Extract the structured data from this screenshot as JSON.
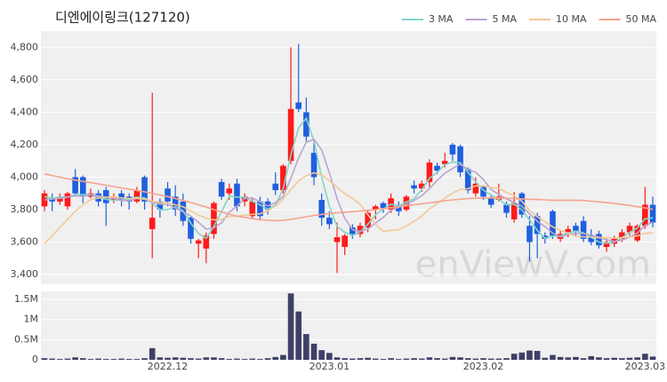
{
  "chart_data": [
    {
      "type": "candlestick",
      "title": "디엔에이링크(127120)",
      "watermark": "enViewV.com",
      "up_color": "#ff1a1a",
      "down_color": "#1f5fe0",
      "legend": "top-right",
      "grid": true,
      "open": [
        3820,
        3870,
        3850,
        3820,
        4000,
        4000,
        3880,
        3900,
        3920,
        3860,
        3900,
        3880,
        3850,
        4000,
        3680,
        3850,
        3930,
        3880,
        3850,
        3750,
        3590,
        3560,
        3650,
        3970,
        3900,
        3960,
        3850,
        3760,
        3850,
        3850,
        3960,
        3920,
        4100,
        4460,
        4400,
        4150,
        3860,
        3750,
        3600,
        3570,
        3690,
        3650,
        3690,
        3800,
        3840,
        3800,
        3830,
        3800,
        3950,
        3930,
        3970,
        4070,
        4080,
        4200,
        4190,
        4050,
        3900,
        3940,
        3870,
        3860,
        3830,
        3740,
        3900,
        3700,
        3760,
        3640,
        3790,
        3620,
        3650,
        3700,
        3730,
        3640,
        3650,
        3570,
        3590,
        3620,
        3660,
        3610,
        3700,
        3830
      ],
      "high": [
        3920,
        3900,
        3900,
        3910,
        4050,
        4010,
        3930,
        3920,
        3940,
        3900,
        3920,
        3900,
        3940,
        4010,
        4520,
        3870,
        3970,
        3950,
        3900,
        3760,
        3620,
        3660,
        3850,
        3990,
        3960,
        3990,
        3900,
        3870,
        3880,
        3870,
        4030,
        4080,
        4800,
        4820,
        4490,
        4230,
        3900,
        3790,
        3720,
        3650,
        3710,
        3720,
        3800,
        3830,
        3850,
        3900,
        3850,
        3890,
        3980,
        3980,
        4110,
        4090,
        4150,
        4210,
        4200,
        4060,
        4000,
        3950,
        3890,
        3960,
        3850,
        3910,
        3910,
        3760,
        3780,
        3660,
        3800,
        3670,
        3700,
        3720,
        3760,
        3680,
        3670,
        3620,
        3640,
        3680,
        3720,
        3710,
        3940,
        3880
      ],
      "low": [
        3790,
        3790,
        3830,
        3800,
        3880,
        3840,
        3870,
        3820,
        3700,
        3840,
        3820,
        3800,
        3840,
        3800,
        3500,
        3750,
        3820,
        3760,
        3700,
        3590,
        3500,
        3470,
        3620,
        3860,
        3860,
        3790,
        3820,
        3740,
        3740,
        3770,
        3890,
        3900,
        4080,
        4400,
        4220,
        3950,
        3700,
        3680,
        3410,
        3520,
        3620,
        3630,
        3660,
        3740,
        3780,
        3780,
        3760,
        3790,
        3900,
        3910,
        3940,
        4020,
        4060,
        4100,
        4000,
        3900,
        3880,
        3860,
        3810,
        3850,
        3750,
        3720,
        3750,
        3480,
        3500,
        3590,
        3620,
        3600,
        3630,
        3640,
        3600,
        3580,
        3560,
        3540,
        3570,
        3600,
        3640,
        3600,
        3680,
        3690
      ],
      "close": [
        3900,
        3850,
        3880,
        3900,
        3900,
        3880,
        3900,
        3850,
        3840,
        3880,
        3860,
        3850,
        3920,
        3850,
        3750,
        3800,
        3850,
        3800,
        3730,
        3620,
        3610,
        3640,
        3840,
        3880,
        3930,
        3820,
        3880,
        3850,
        3760,
        3800,
        3920,
        4070,
        4420,
        4420,
        4250,
        4000,
        3750,
        3710,
        3630,
        3640,
        3650,
        3700,
        3780,
        3820,
        3810,
        3870,
        3790,
        3880,
        3930,
        3960,
        4090,
        4040,
        4100,
        4140,
        4030,
        3920,
        3960,
        3880,
        3830,
        3880,
        3780,
        3840,
        3770,
        3600,
        3650,
        3620,
        3640,
        3650,
        3680,
        3670,
        3620,
        3600,
        3580,
        3600,
        3620,
        3660,
        3700,
        3700,
        3830,
        3720
      ],
      "series": [
        {
          "name": "3 MA",
          "color": "#7fd6c8",
          "values": [
            3880,
            3870,
            3877,
            3877,
            3893,
            3893,
            3893,
            3877,
            3863,
            3857,
            3860,
            3863,
            3877,
            3873,
            3840,
            3800,
            3800,
            3817,
            3793,
            3717,
            3653,
            3623,
            3697,
            3787,
            3883,
            3877,
            3877,
            3850,
            3830,
            3803,
            3827,
            3930,
            4137,
            4303,
            4363,
            4223,
            4000,
            3820,
            3697,
            3660,
            3640,
            3663,
            3710,
            3767,
            3803,
            3833,
            3823,
            3847,
            3867,
            3923,
            3993,
            4030,
            4077,
            4093,
            4090,
            4030,
            3970,
            3920,
            3890,
            3863,
            3830,
            3833,
            3797,
            3737,
            3673,
            3623,
            3637,
            3637,
            3657,
            3667,
            3657,
            3630,
            3600,
            3593,
            3600,
            3627,
            3660,
            3687,
            3743,
            3750
          ]
        },
        {
          "name": "5 MA",
          "color": "#b8a4cf",
          "values": [
            3860,
            3865,
            3870,
            3878,
            3886,
            3882,
            3892,
            3886,
            3874,
            3870,
            3856,
            3856,
            3870,
            3864,
            3846,
            3834,
            3834,
            3810,
            3786,
            3760,
            3722,
            3680,
            3688,
            3718,
            3784,
            3822,
            3870,
            3872,
            3848,
            3822,
            3842,
            3880,
            3994,
            4118,
            4216,
            4232,
            4168,
            4026,
            3868,
            3746,
            3676,
            3666,
            3680,
            3718,
            3752,
            3796,
            3814,
            3834,
            3856,
            3886,
            3930,
            3980,
            4024,
            4054,
            4080,
            4046,
            4030,
            3986,
            3924,
            3894,
            3866,
            3844,
            3820,
            3774,
            3728,
            3696,
            3656,
            3632,
            3648,
            3652,
            3652,
            3644,
            3630,
            3614,
            3604,
            3612,
            3632,
            3656,
            3702,
            3722
          ]
        },
        {
          "name": "10 MA",
          "color": "#f2c995",
          "values": [
            3590,
            3640,
            3690,
            3740,
            3790,
            3830,
            3860,
            3872,
            3876,
            3878,
            3872,
            3868,
            3870,
            3866,
            3852,
            3844,
            3840,
            3830,
            3818,
            3792,
            3766,
            3746,
            3737,
            3740,
            3758,
            3760,
            3766,
            3771,
            3774,
            3792,
            3822,
            3865,
            3923,
            3977,
            4009,
            4027,
            4014,
            3980,
            3937,
            3897,
            3870,
            3833,
            3769,
            3709,
            3665,
            3672,
            3676,
            3698,
            3728,
            3760,
            3804,
            3838,
            3870,
            3902,
            3924,
            3929,
            3946,
            3946,
            3936,
            3931,
            3906,
            3886,
            3852,
            3794,
            3756,
            3726,
            3694,
            3671,
            3656,
            3635,
            3633,
            3631,
            3627,
            3627,
            3624,
            3628,
            3633,
            3638,
            3653,
            3658
          ]
        },
        {
          "name": "50 MA",
          "color": "#f4a48e",
          "values": [
            4020,
            4010,
            4000,
            3990,
            3982,
            3974,
            3966,
            3958,
            3950,
            3942,
            3934,
            3926,
            3918,
            3910,
            3900,
            3890,
            3880,
            3868,
            3856,
            3844,
            3830,
            3816,
            3800,
            3786,
            3772,
            3760,
            3752,
            3744,
            3738,
            3734,
            3732,
            3734,
            3740,
            3748,
            3756,
            3764,
            3770,
            3776,
            3780,
            3784,
            3788,
            3792,
            3796,
            3800,
            3806,
            3812,
            3818,
            3824,
            3830,
            3836,
            3842,
            3848,
            3854,
            3860,
            3864,
            3868,
            3870,
            3872,
            3872,
            3872,
            3870,
            3868,
            3866,
            3864,
            3862,
            3860,
            3858,
            3858,
            3858,
            3858,
            3856,
            3852,
            3848,
            3844,
            3838,
            3832,
            3826,
            3818,
            3810,
            3802
          ]
        }
      ],
      "ylim": [
        3340,
        4900
      ],
      "yticks": [
        {
          "value": 3400,
          "label": "3,400"
        },
        {
          "value": 3600,
          "label": "3,600"
        },
        {
          "value": 3800,
          "label": "3,800"
        },
        {
          "value": 4000,
          "label": "4,000"
        },
        {
          "value": 4200,
          "label": "4,200"
        },
        {
          "value": 4400,
          "label": "4,400"
        },
        {
          "value": 4600,
          "label": "4,600"
        },
        {
          "value": 4800,
          "label": "4,800"
        }
      ]
    },
    {
      "type": "bar",
      "color": "#3e4066",
      "grid": true,
      "categories": [
        null,
        null,
        null,
        null,
        null,
        null,
        null,
        null,
        null,
        null,
        null,
        null,
        null,
        null,
        null,
        null,
        "2022.12",
        null,
        null,
        null,
        null,
        null,
        null,
        null,
        null,
        null,
        null,
        null,
        null,
        null,
        null,
        null,
        null,
        null,
        null,
        null,
        null,
        "2023.01",
        null,
        null,
        null,
        null,
        null,
        null,
        null,
        null,
        null,
        null,
        null,
        null,
        null,
        null,
        null,
        null,
        null,
        null,
        null,
        "2023.02",
        null,
        null,
        null,
        null,
        null,
        null,
        null,
        null,
        null,
        null,
        null,
        null,
        null,
        null,
        null,
        null,
        null,
        null,
        null,
        null,
        "2023.03",
        null
      ],
      "values": [
        40000,
        30000,
        20000,
        30000,
        60000,
        40000,
        20000,
        30000,
        20000,
        20000,
        30000,
        20000,
        20000,
        40000,
        290000,
        60000,
        50000,
        60000,
        50000,
        40000,
        30000,
        60000,
        60000,
        40000,
        20000,
        30000,
        20000,
        30000,
        20000,
        40000,
        70000,
        120000,
        1650000,
        1200000,
        640000,
        400000,
        240000,
        170000,
        60000,
        40000,
        30000,
        40000,
        50000,
        30000,
        20000,
        40000,
        20000,
        30000,
        40000,
        30000,
        60000,
        40000,
        30000,
        70000,
        60000,
        40000,
        30000,
        40000,
        30000,
        30000,
        40000,
        150000,
        180000,
        230000,
        220000,
        50000,
        120000,
        70000,
        60000,
        70000,
        40000,
        90000,
        60000,
        40000,
        50000,
        40000,
        50000,
        60000,
        150000,
        80000
      ],
      "ylim": [
        0,
        1700000
      ],
      "yticks": [
        0,
        {
          "value": 500000,
          "label": "0.5M"
        },
        {
          "value": 1000000,
          "label": "1M"
        },
        {
          "value": 1500000,
          "label": "1.5M"
        }
      ]
    }
  ]
}
